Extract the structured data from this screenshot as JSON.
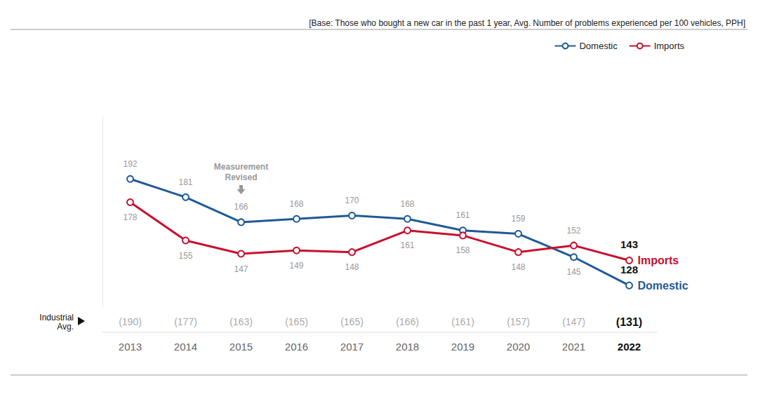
{
  "chart_data": {
    "type": "line",
    "subtitle": "[Base: Those who bought a new car in the past 1 year, Avg. Number of problems experienced per 100 vehicles, PPH]",
    "categories": [
      "2013",
      "2014",
      "2015",
      "2016",
      "2017",
      "2018",
      "2019",
      "2020",
      "2021",
      "2022"
    ],
    "series": [
      {
        "name": "Domestic",
        "color": "#1f5a96",
        "marker": "circle",
        "line_style": "solid",
        "values": [
          192,
          181,
          166,
          168,
          170,
          168,
          161,
          159,
          145,
          128
        ]
      },
      {
        "name": "Imports",
        "color": "#c8102e",
        "marker": "circle",
        "line_style": "solid",
        "values": [
          178,
          155,
          147,
          149,
          148,
          161,
          158,
          148,
          152,
          143
        ]
      }
    ],
    "industrial_avg": {
      "label": "Industrial Avg.",
      "values": [
        190,
        177,
        163,
        165,
        165,
        166,
        161,
        157,
        147,
        131
      ],
      "value_labels": [
        "(190)",
        "(177)",
        "(163)",
        "(165)",
        "(165)",
        "(166)",
        "(161)",
        "(157)",
        "(147)",
        "(131)"
      ]
    },
    "annotations": [
      {
        "text": "Measurement Revised",
        "x": "2015"
      }
    ],
    "ylim": [
      115,
      230
    ],
    "data_labels": true,
    "tick_labels": "x",
    "grid": false,
    "legend": "top-right"
  }
}
